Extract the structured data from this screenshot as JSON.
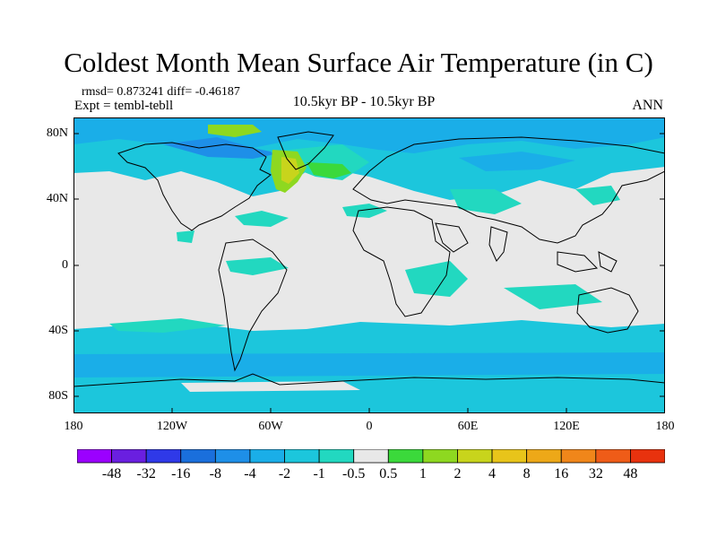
{
  "title": "Coldest Month Mean Surface Air Temperature (in C)",
  "stats": "rmsd= 0.873241 diff= -0.46187",
  "experiment": "Expt = tembl-tebll",
  "subtitle": "10.5kyr BP - 10.5kyr BP",
  "season": "ANN",
  "map": {
    "lat_ticks": [
      "80N",
      "40N",
      "0",
      "40S",
      "80S"
    ],
    "lon_ticks": [
      "180",
      "120W",
      "60W",
      "0",
      "60E",
      "120E",
      "180"
    ],
    "ocean_color": "#e8e8e8"
  },
  "colorbar": {
    "colors": [
      "#9b00ff",
      "#6a1fe0",
      "#2f39e8",
      "#1a6fdc",
      "#1e8fe8",
      "#1aaee8",
      "#1cc6dc",
      "#22d8c0",
      "#e8e8e8",
      "#3bd93b",
      "#8ed820",
      "#c8d41c",
      "#e8c41a",
      "#eda818",
      "#f0861a",
      "#ef5c18",
      "#e8320e"
    ],
    "labels": [
      "-48",
      "-32",
      "-16",
      "-8",
      "-4",
      "-2",
      "-1",
      "-0.5",
      "0.5",
      "1",
      "2",
      "4",
      "8",
      "16",
      "32",
      "48"
    ]
  }
}
